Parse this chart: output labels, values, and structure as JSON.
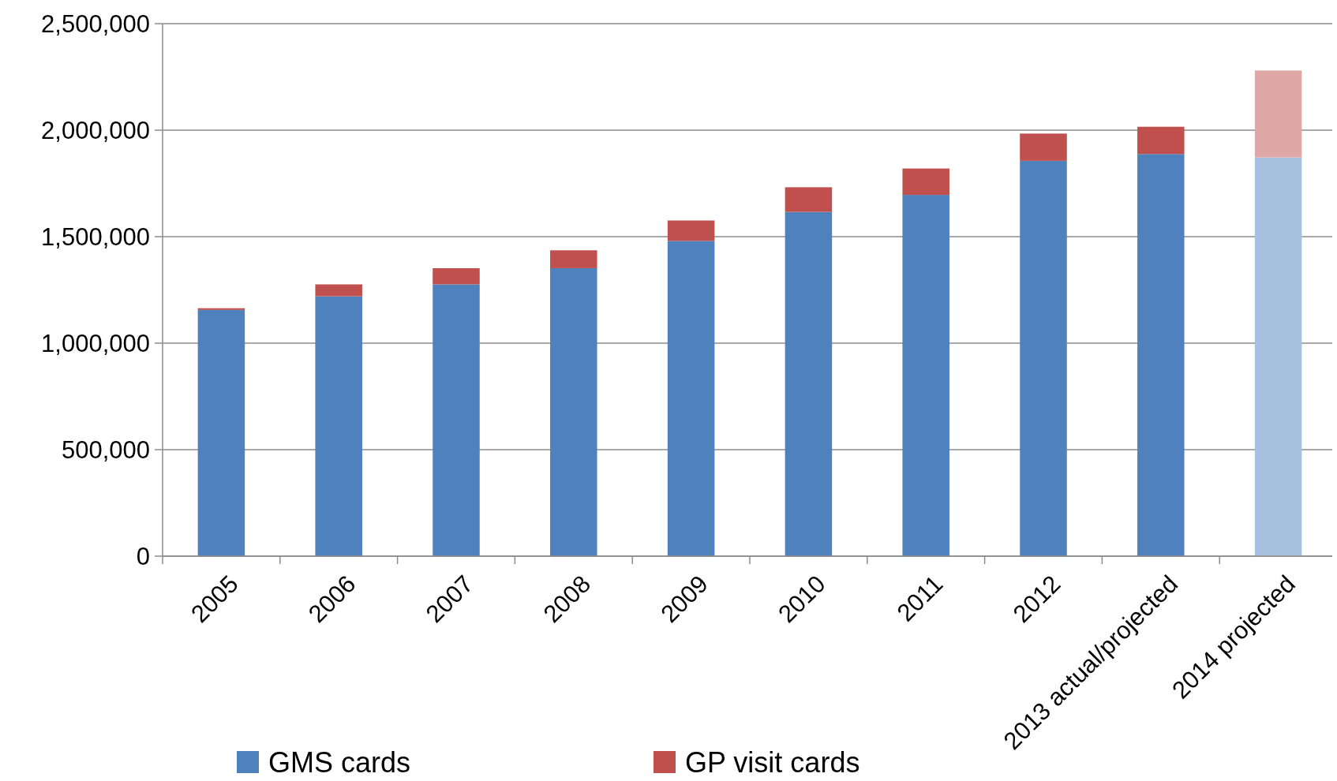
{
  "chart_data": {
    "type": "bar",
    "stacked": true,
    "categories": [
      "2005",
      "2006",
      "2007",
      "2008",
      "2009",
      "2010",
      "2011",
      "2012",
      "2013 actual/projected",
      "2014 projected"
    ],
    "series": [
      {
        "name": "GMS cards",
        "color": "#4f81bd",
        "colors": [
          "#4f81bd",
          "#4f81bd",
          "#4f81bd",
          "#4f81bd",
          "#4f81bd",
          "#4f81bd",
          "#4f81bd",
          "#4f81bd",
          "#4f81bd",
          "#a7c0de"
        ],
        "values": [
          1156000,
          1220000,
          1276000,
          1352000,
          1480000,
          1616000,
          1696000,
          1856000,
          1888000,
          1872000
        ]
      },
      {
        "name": "GP visit cards",
        "color": "#c0504d",
        "colors": [
          "#c0504d",
          "#c0504d",
          "#c0504d",
          "#c0504d",
          "#c0504d",
          "#c0504d",
          "#c0504d",
          "#c0504d",
          "#c0504d",
          "#dfa7a6"
        ],
        "values": [
          8000,
          56000,
          76000,
          84000,
          96000,
          116000,
          124000,
          128000,
          128000,
          408000
        ]
      }
    ],
    "ylim": [
      0,
      2500000
    ],
    "yticks": [
      {
        "value": 0,
        "label": "0"
      },
      {
        "value": 500000,
        "label": "500,000"
      },
      {
        "value": 1000000,
        "label": "1,000,000"
      },
      {
        "value": 1500000,
        "label": "1,500,000"
      },
      {
        "value": 2000000,
        "label": "2,000,000"
      },
      {
        "value": 2500000,
        "label": "2,500,000"
      }
    ],
    "grid": "y",
    "legend": "bottom"
  }
}
